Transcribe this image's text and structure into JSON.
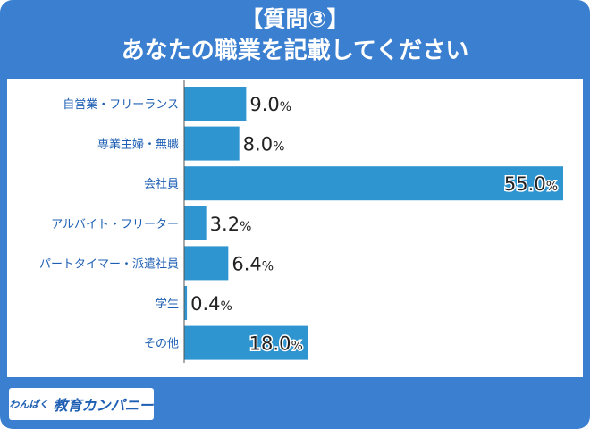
{
  "header": {
    "line1": "【質問③】",
    "line2": "あなたの職業を記載してください"
  },
  "logo": {
    "prefix": "わんぱく",
    "name": "教育カンパニー"
  },
  "colors": {
    "background": "#3b7fd0",
    "bar": "#2e95d0",
    "axis": "#555555",
    "text": "#222222",
    "label": "#1e5fb3"
  },
  "chart_data": {
    "type": "bar",
    "orientation": "horizontal",
    "categories": [
      "自営業・フリーランス",
      "専業主婦・無職",
      "会社員",
      "アルバイト・フリーター",
      "パートタイマー・派遣社員",
      "学生",
      "その他"
    ],
    "values": [
      9.0,
      8.0,
      55.0,
      3.2,
      6.4,
      0.4,
      18.0
    ],
    "value_labels": [
      "9.0",
      "8.0",
      "55.0",
      "3.2",
      "6.4",
      "0.4",
      "18.0"
    ],
    "unit": "%",
    "xlim": [
      0,
      55
    ],
    "title": "あなたの職業を記載してください",
    "xlabel": "",
    "ylabel": "",
    "grid": false,
    "legend": "none"
  }
}
